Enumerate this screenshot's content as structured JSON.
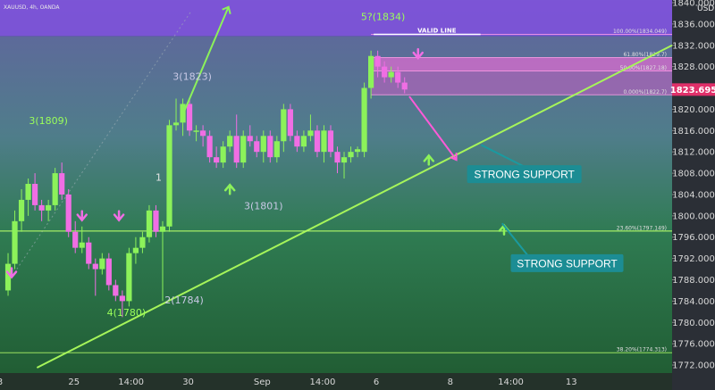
{
  "chart_data": {
    "type": "candlestick",
    "symbol": "XAUUSD, 4h, OANDA",
    "currency": "USD",
    "ylim": [
      1770.5,
      1840.5
    ],
    "xlim": [
      0,
      100
    ],
    "y_ticks": [
      1772,
      1776,
      1780,
      1784,
      1788,
      1792,
      1796,
      1800,
      1804,
      1808,
      1812,
      1816,
      1820,
      1824,
      1828,
      1832,
      1836,
      1840
    ],
    "y_tick_labels": [
      "1772.000",
      "1776.000",
      "1780.000",
      "1784.000",
      "1788.000",
      "1792.000",
      "1796.000",
      "1800.000",
      "1804.000",
      "1808.000",
      "1812.000",
      "1816.000",
      "1820.000",
      "1824.000",
      "1828.000",
      "1832.000",
      "1836.000",
      "1840.000"
    ],
    "x_ticks": [
      {
        "x": 0,
        "label": "3"
      },
      {
        "x": 11,
        "label": "25"
      },
      {
        "x": 19.5,
        "label": "14:00"
      },
      {
        "x": 28,
        "label": "30"
      },
      {
        "x": 39,
        "label": "Sep"
      },
      {
        "x": 48,
        "label": "14:00"
      },
      {
        "x": 56,
        "label": "6"
      },
      {
        "x": 67,
        "label": "8"
      },
      {
        "x": 76,
        "label": "14:00"
      },
      {
        "x": 85,
        "label": "13"
      }
    ],
    "current_price": 1823.695,
    "current_price_label": "1823.695",
    "candles": [
      {
        "x": 1.2,
        "o": 1786,
        "h": 1793,
        "l": 1785,
        "c": 1791
      },
      {
        "x": 2.2,
        "o": 1791,
        "h": 1801,
        "l": 1790,
        "c": 1799
      },
      {
        "x": 3.2,
        "o": 1799,
        "h": 1805,
        "l": 1797,
        "c": 1803
      },
      {
        "x": 4.2,
        "o": 1803,
        "h": 1807,
        "l": 1800,
        "c": 1806
      },
      {
        "x": 5.2,
        "o": 1806,
        "h": 1808,
        "l": 1801,
        "c": 1802
      },
      {
        "x": 6.2,
        "o": 1802,
        "h": 1803,
        "l": 1799,
        "c": 1801
      },
      {
        "x": 7.2,
        "o": 1801,
        "h": 1803,
        "l": 1799,
        "c": 1802
      },
      {
        "x": 8.2,
        "o": 1802,
        "h": 1809,
        "l": 1801,
        "c": 1808
      },
      {
        "x": 9.2,
        "o": 1808,
        "h": 1810,
        "l": 1803,
        "c": 1804
      },
      {
        "x": 10.2,
        "o": 1804,
        "h": 1805,
        "l": 1796,
        "c": 1797
      },
      {
        "x": 11.2,
        "o": 1797,
        "h": 1799,
        "l": 1793,
        "c": 1794
      },
      {
        "x": 12.2,
        "o": 1794,
        "h": 1798,
        "l": 1793,
        "c": 1795
      },
      {
        "x": 13.2,
        "o": 1795,
        "h": 1796,
        "l": 1790,
        "c": 1791
      },
      {
        "x": 14.2,
        "o": 1791,
        "h": 1792,
        "l": 1785,
        "c": 1790
      },
      {
        "x": 15.2,
        "o": 1790,
        "h": 1793,
        "l": 1789,
        "c": 1792
      },
      {
        "x": 16.2,
        "o": 1792,
        "h": 1793,
        "l": 1786,
        "c": 1787
      },
      {
        "x": 17.2,
        "o": 1787,
        "h": 1788,
        "l": 1784,
        "c": 1785
      },
      {
        "x": 18.2,
        "o": 1785,
        "h": 1786,
        "l": 1781,
        "c": 1784
      },
      {
        "x": 19.2,
        "o": 1784,
        "h": 1794,
        "l": 1783,
        "c": 1793
      },
      {
        "x": 20.2,
        "o": 1793,
        "h": 1796,
        "l": 1791,
        "c": 1794
      },
      {
        "x": 21.2,
        "o": 1794,
        "h": 1797,
        "l": 1793,
        "c": 1796
      },
      {
        "x": 22.2,
        "o": 1796,
        "h": 1802,
        "l": 1795,
        "c": 1801
      },
      {
        "x": 23.2,
        "o": 1801,
        "h": 1802,
        "l": 1796,
        "c": 1797
      },
      {
        "x": 24.2,
        "o": 1797,
        "h": 1799,
        "l": 1784,
        "c": 1798
      },
      {
        "x": 25.2,
        "o": 1798,
        "h": 1818,
        "l": 1797,
        "c": 1817
      },
      {
        "x": 26.2,
        "o": 1817,
        "h": 1822,
        "l": 1816,
        "c": 1817.5
      },
      {
        "x": 27.2,
        "o": 1817.5,
        "h": 1822,
        "l": 1815,
        "c": 1821
      },
      {
        "x": 28.2,
        "o": 1821,
        "h": 1822,
        "l": 1815,
        "c": 1816
      },
      {
        "x": 29.2,
        "o": 1816,
        "h": 1817,
        "l": 1814,
        "c": 1816
      },
      {
        "x": 30.2,
        "o": 1816,
        "h": 1817,
        "l": 1813,
        "c": 1815
      },
      {
        "x": 31.2,
        "o": 1815,
        "h": 1816,
        "l": 1810,
        "c": 1811
      },
      {
        "x": 32.2,
        "o": 1811,
        "h": 1813,
        "l": 1809,
        "c": 1810
      },
      {
        "x": 33.2,
        "o": 1810,
        "h": 1814,
        "l": 1809,
        "c": 1813
      },
      {
        "x": 34.2,
        "o": 1813,
        "h": 1816,
        "l": 1812,
        "c": 1815
      },
      {
        "x": 35.2,
        "o": 1815,
        "h": 1819,
        "l": 1809,
        "c": 1810
      },
      {
        "x": 36.2,
        "o": 1810,
        "h": 1816,
        "l": 1809,
        "c": 1815
      },
      {
        "x": 37.2,
        "o": 1815,
        "h": 1817,
        "l": 1813,
        "c": 1814
      },
      {
        "x": 38.2,
        "o": 1814,
        "h": 1815,
        "l": 1811,
        "c": 1812
      },
      {
        "x": 39.2,
        "o": 1812,
        "h": 1816,
        "l": 1810,
        "c": 1815
      },
      {
        "x": 40.2,
        "o": 1815,
        "h": 1816,
        "l": 1810,
        "c": 1811
      },
      {
        "x": 41.2,
        "o": 1811,
        "h": 1815,
        "l": 1810,
        "c": 1814
      },
      {
        "x": 42.2,
        "o": 1814,
        "h": 1821,
        "l": 1812,
        "c": 1820
      },
      {
        "x": 43.2,
        "o": 1820,
        "h": 1821,
        "l": 1814,
        "c": 1815
      },
      {
        "x": 44.2,
        "o": 1815,
        "h": 1816,
        "l": 1812,
        "c": 1813
      },
      {
        "x": 45.2,
        "o": 1813,
        "h": 1816,
        "l": 1812,
        "c": 1815
      },
      {
        "x": 46.2,
        "o": 1815,
        "h": 1819,
        "l": 1814,
        "c": 1816
      },
      {
        "x": 47.2,
        "o": 1816,
        "h": 1817,
        "l": 1811,
        "c": 1812
      },
      {
        "x": 48.2,
        "o": 1812,
        "h": 1817,
        "l": 1810,
        "c": 1816
      },
      {
        "x": 49.2,
        "o": 1816,
        "h": 1817,
        "l": 1811,
        "c": 1812
      },
      {
        "x": 50.2,
        "o": 1812,
        "h": 1813,
        "l": 1808,
        "c": 1810
      },
      {
        "x": 51.2,
        "o": 1810,
        "h": 1812,
        "l": 1807,
        "c": 1811
      },
      {
        "x": 52.2,
        "o": 1811,
        "h": 1813,
        "l": 1810,
        "c": 1812
      },
      {
        "x": 53.2,
        "o": 1812,
        "h": 1813,
        "l": 1811,
        "c": 1812.5
      },
      {
        "x": 54.2,
        "o": 1812,
        "h": 1825,
        "l": 1811,
        "c": 1824
      },
      {
        "x": 55.2,
        "o": 1824,
        "h": 1831,
        "l": 1822,
        "c": 1830
      },
      {
        "x": 56.2,
        "o": 1830,
        "h": 1831,
        "l": 1826,
        "c": 1828
      },
      {
        "x": 57.2,
        "o": 1828,
        "h": 1829,
        "l": 1825,
        "c": 1826
      },
      {
        "x": 58.2,
        "o": 1826,
        "h": 1828,
        "l": 1825,
        "c": 1827
      },
      {
        "x": 59.2,
        "o": 1827,
        "h": 1828,
        "l": 1824,
        "c": 1825
      },
      {
        "x": 60.2,
        "o": 1825,
        "h": 1826,
        "l": 1823,
        "c": 1823.7
      }
    ],
    "annotations": {
      "wave_labels": [
        {
          "text": "3(1809)",
          "x": 7.2,
          "y": 1817.2,
          "color": "#9aff5a"
        },
        {
          "text": "3(1823)",
          "x": 28.6,
          "y": 1825.5,
          "color": "#c9c9e6"
        },
        {
          "text": "1",
          "x": 23.6,
          "y": 1806.6,
          "color": "#e6e6e6"
        },
        {
          "text": "3(1801)",
          "x": 39.2,
          "y": 1801.2,
          "color": "#c9c9e6"
        },
        {
          "text": "2(1784)",
          "x": 27.4,
          "y": 1783.6,
          "color": "#c9c9e6"
        },
        {
          "text": "4(1780)",
          "x": 18.8,
          "y": 1781.2,
          "color": "#9aff5a"
        },
        {
          "text": "5?(1834)",
          "x": 57,
          "y": 1836.7,
          "color": "#9aff5a"
        }
      ],
      "valid_line_label": "VALID LINE",
      "support_labels": [
        "STRONG SUPPORT",
        "STRONG SUPPORT"
      ],
      "fib_levels": [
        {
          "label": "100.00%(1834.049)",
          "y": 1834.05
        },
        {
          "label": "61.80%(1829.7)",
          "y": 1829.7
        },
        {
          "label": "50.00%(1827.18)",
          "y": 1827.18
        },
        {
          "label": "0.000%(1822.7)",
          "y": 1822.7
        },
        {
          "label": "23.60%(1797.149)",
          "y": 1797.15
        },
        {
          "label": "38.20%(1774.313)",
          "y": 1774.31
        }
      ]
    }
  }
}
